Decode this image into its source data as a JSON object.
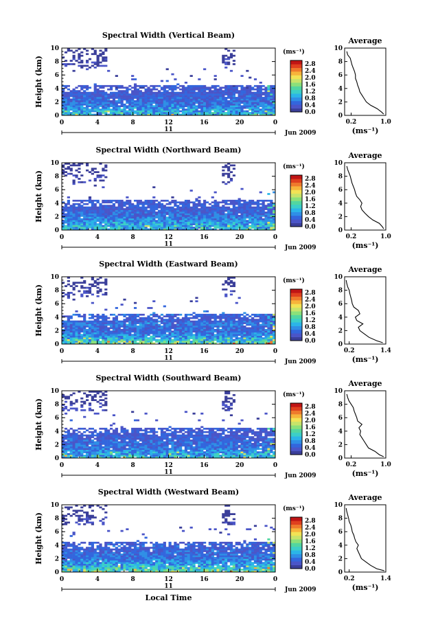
{
  "chart_data": [
    {
      "type": "heatmap",
      "title": "Spectral Width (Vertical Beam)",
      "ylabel": "Height (km)",
      "xlabel": "",
      "x_ticks": [
        "0",
        "4",
        "8",
        "12",
        "16",
        "20",
        "0"
      ],
      "y_ticks": [
        "0",
        "2",
        "4",
        "6",
        "8",
        "10"
      ],
      "xlim": [
        0,
        24
      ],
      "ylim": [
        0,
        10
      ],
      "day_label": "11",
      "date_label": "Jun 2009",
      "colorbar": {
        "unit_label": "(ms⁻¹)",
        "ticks": [
          "0.0",
          "0.4",
          "0.8",
          "1.2",
          "1.6",
          "2.0",
          "2.4",
          "2.8"
        ],
        "range": [
          0,
          3.0
        ]
      },
      "average": {
        "title": "Average",
        "xlabel": "(ms⁻¹)",
        "x_ticks": [
          "0.2",
          "1.0"
        ],
        "xlim": [
          0.05,
          1.0
        ],
        "heights": [
          0.2,
          0.5,
          1.0,
          1.5,
          2.0,
          2.5,
          3.0,
          3.5,
          4.0,
          4.5,
          5.0,
          5.5,
          6.0,
          6.5,
          7.0,
          7.5,
          8.0,
          8.5,
          9.0,
          9.5
        ],
        "values": [
          0.95,
          0.9,
          0.8,
          0.65,
          0.55,
          0.5,
          0.45,
          0.4,
          0.38,
          0.35,
          0.33,
          0.3,
          0.3,
          0.28,
          0.25,
          0.22,
          0.2,
          0.18,
          0.12,
          0.1
        ]
      }
    },
    {
      "type": "heatmap",
      "title": "Spectral Width (Northward Beam)",
      "ylabel": "Height (km)",
      "xlabel": "",
      "x_ticks": [
        "0",
        "4",
        "8",
        "12",
        "16",
        "20",
        "0"
      ],
      "y_ticks": [
        "0",
        "2",
        "4",
        "6",
        "8",
        "10"
      ],
      "xlim": [
        0,
        24
      ],
      "ylim": [
        0,
        10
      ],
      "day_label": "11",
      "date_label": "Jun 2009",
      "colorbar": {
        "unit_label": "(ms⁻¹)",
        "ticks": [
          "0.0",
          "0.4",
          "0.8",
          "1.2",
          "1.6",
          "2.0",
          "2.4",
          "2.8"
        ],
        "range": [
          0,
          3.0
        ]
      },
      "average": {
        "title": "Average",
        "xlabel": "(ms⁻¹)",
        "x_ticks": [
          "0.2",
          "1.0"
        ],
        "xlim": [
          0.05,
          1.0
        ],
        "heights": [
          0.2,
          0.5,
          1.0,
          1.5,
          2.0,
          2.5,
          3.0,
          3.5,
          4.0,
          4.5,
          5.0,
          5.5,
          6.0,
          6.5,
          7.0,
          7.5,
          8.0,
          8.5,
          9.0,
          9.5
        ],
        "values": [
          0.95,
          0.92,
          0.85,
          0.7,
          0.6,
          0.52,
          0.45,
          0.42,
          0.45,
          0.4,
          0.33,
          0.3,
          0.28,
          0.25,
          0.22,
          0.2,
          0.18,
          0.15,
          0.12,
          0.1
        ]
      }
    },
    {
      "type": "heatmap",
      "title": "Spectral Width (Eastward Beam)",
      "ylabel": "Height (km)",
      "xlabel": "",
      "x_ticks": [
        "0",
        "4",
        "8",
        "12",
        "16",
        "20",
        "0"
      ],
      "y_ticks": [
        "0",
        "2",
        "4",
        "6",
        "8",
        "10"
      ],
      "xlim": [
        0,
        24
      ],
      "ylim": [
        0,
        10
      ],
      "day_label": "11",
      "date_label": "Jun 2009",
      "colorbar": {
        "unit_label": "(ms⁻¹)",
        "ticks": [
          "0.0",
          "0.4",
          "0.8",
          "1.2",
          "1.6",
          "2.0",
          "2.4",
          "2.8"
        ],
        "range": [
          0,
          3.0
        ]
      },
      "average": {
        "title": "Average",
        "xlabel": "(ms⁻¹)",
        "x_ticks": [
          "0.2",
          "1.4"
        ],
        "xlim": [
          0.05,
          1.4
        ],
        "heights": [
          0.2,
          0.5,
          1.0,
          1.5,
          2.0,
          2.5,
          3.0,
          3.5,
          4.0,
          4.5,
          5.0,
          5.5,
          6.0,
          6.5,
          7.0,
          7.5,
          8.0,
          8.5,
          9.0,
          9.5
        ],
        "values": [
          1.3,
          1.1,
          0.85,
          0.7,
          0.55,
          0.5,
          0.65,
          0.45,
          0.4,
          0.55,
          0.5,
          0.35,
          0.3,
          0.28,
          0.25,
          0.22,
          0.2,
          0.15,
          0.12,
          0.1
        ]
      }
    },
    {
      "type": "heatmap",
      "title": "Spectral Width (Southward Beam)",
      "ylabel": "Height (km)",
      "xlabel": "",
      "x_ticks": [
        "0",
        "4",
        "8",
        "12",
        "16",
        "20",
        "0"
      ],
      "y_ticks": [
        "0",
        "2",
        "4",
        "6",
        "8",
        "10"
      ],
      "xlim": [
        0,
        24
      ],
      "ylim": [
        0,
        10
      ],
      "day_label": "11",
      "date_label": "Jun 2009",
      "colorbar": {
        "unit_label": "(ms⁻¹)",
        "ticks": [
          "0.0",
          "0.4",
          "0.8",
          "1.2",
          "1.6",
          "2.0",
          "2.4",
          "2.8"
        ],
        "range": [
          0,
          3.0
        ]
      },
      "average": {
        "title": "Average",
        "xlabel": "(ms⁻¹)",
        "x_ticks": [
          "0.2",
          "1.0"
        ],
        "xlim": [
          0.05,
          1.0
        ],
        "heights": [
          0.2,
          0.5,
          1.0,
          1.5,
          2.0,
          2.5,
          3.0,
          3.5,
          4.0,
          4.5,
          5.0,
          5.5,
          6.0,
          6.5,
          7.0,
          7.5,
          8.0,
          8.5,
          9.0,
          9.5
        ],
        "values": [
          0.95,
          0.85,
          0.75,
          0.6,
          0.55,
          0.5,
          0.45,
          0.4,
          0.42,
          0.38,
          0.45,
          0.35,
          0.33,
          0.3,
          0.27,
          0.25,
          0.2,
          0.15,
          0.12,
          0.1
        ]
      }
    },
    {
      "type": "heatmap",
      "title": "Spectral Width (Westward Beam)",
      "ylabel": "Height (km)",
      "xlabel": "Local Time",
      "x_ticks": [
        "0",
        "4",
        "8",
        "12",
        "16",
        "20",
        "0"
      ],
      "y_ticks": [
        "0",
        "2",
        "4",
        "6",
        "8",
        "10"
      ],
      "xlim": [
        0,
        24
      ],
      "ylim": [
        0,
        10
      ],
      "day_label": "11",
      "date_label": "Jun 2009",
      "colorbar": {
        "unit_label": "(ms⁻¹)",
        "ticks": [
          "0.0",
          "0.4",
          "0.8",
          "1.2",
          "1.6",
          "2.0",
          "2.4",
          "2.8"
        ],
        "range": [
          0,
          3.0
        ]
      },
      "average": {
        "title": "Average",
        "xlabel": "(ms⁻¹)",
        "x_ticks": [
          "0.2",
          "1.4"
        ],
        "xlim": [
          0.05,
          1.4
        ],
        "heights": [
          0.2,
          0.5,
          1.0,
          1.5,
          2.0,
          2.5,
          3.0,
          3.5,
          4.0,
          4.5,
          5.0,
          5.5,
          6.0,
          6.5,
          7.0,
          7.5,
          8.0,
          8.5,
          9.0,
          9.5
        ],
        "values": [
          1.35,
          1.1,
          0.9,
          0.75,
          0.6,
          0.55,
          0.5,
          0.45,
          0.5,
          0.42,
          0.38,
          0.35,
          0.3,
          0.28,
          0.25,
          0.2,
          0.18,
          0.15,
          0.12,
          0.1
        ]
      }
    }
  ]
}
